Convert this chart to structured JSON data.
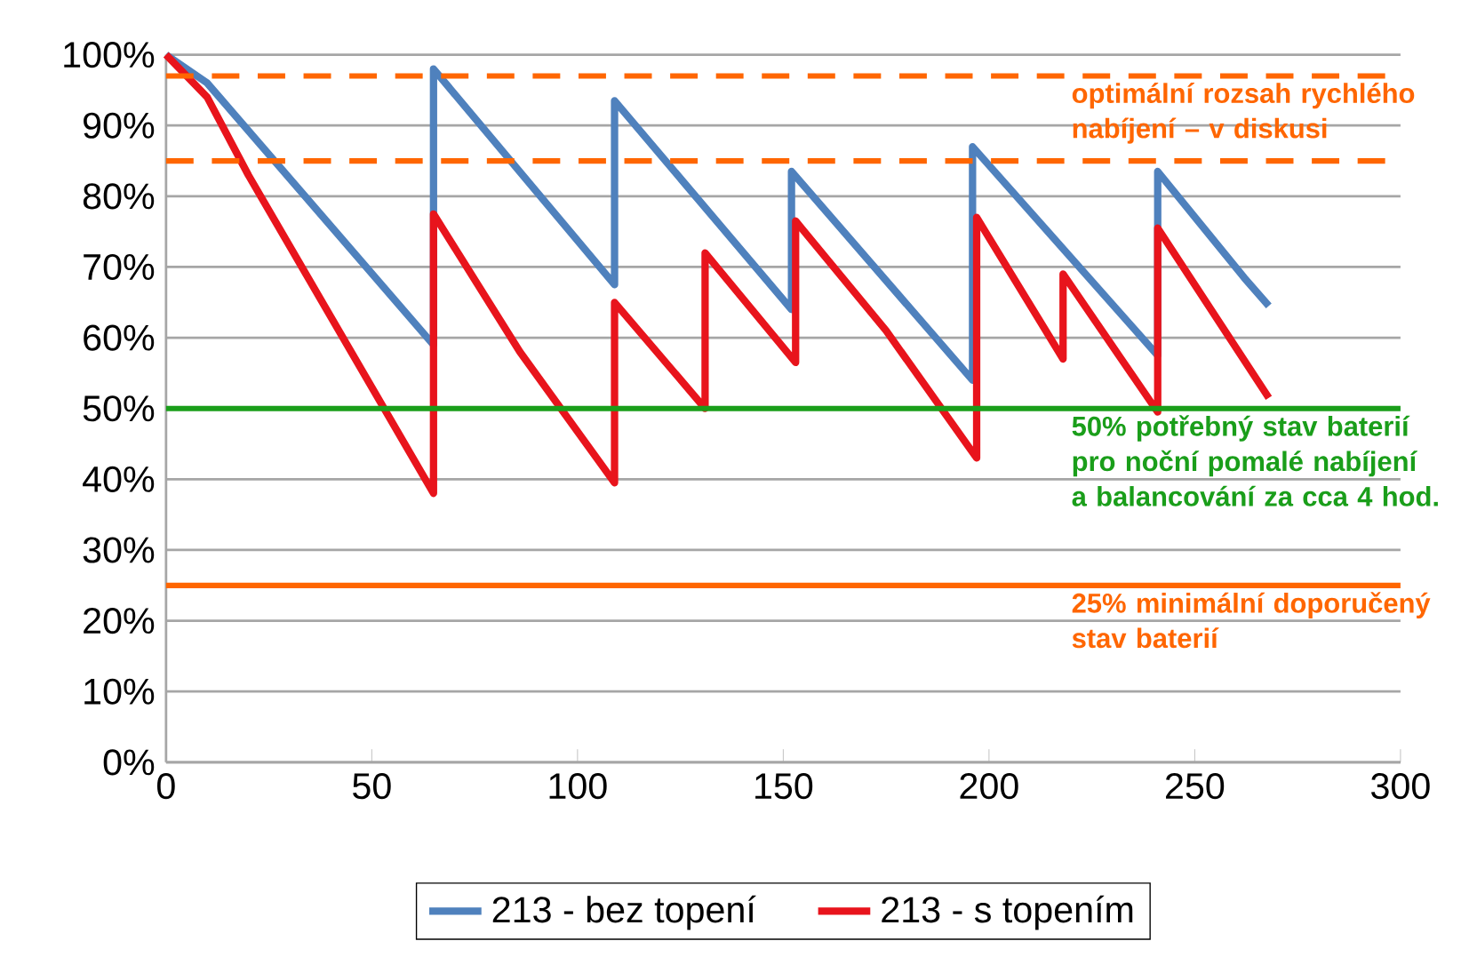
{
  "chart_data": {
    "type": "line",
    "xlim": [
      0,
      300
    ],
    "ylim": [
      0,
      100
    ],
    "xticks": [
      0,
      50,
      100,
      150,
      200,
      250,
      300
    ],
    "yticks": [
      {
        "value": 0,
        "label": "0%"
      },
      {
        "value": 10,
        "label": "10%"
      },
      {
        "value": 20,
        "label": "20%"
      },
      {
        "value": 30,
        "label": "30%"
      },
      {
        "value": 40,
        "label": "40%"
      },
      {
        "value": 50,
        "label": "50%"
      },
      {
        "value": 60,
        "label": "60%"
      },
      {
        "value": 70,
        "label": "70%"
      },
      {
        "value": 80,
        "label": "80%"
      },
      {
        "value": 90,
        "label": "90%"
      },
      {
        "value": 100,
        "label": "100%"
      }
    ],
    "grid": "y",
    "legend": "bottom",
    "marker": "none",
    "line_style": "solid",
    "series": [
      {
        "name": "213 - bez topení",
        "color": "#4f81bd",
        "x": [
          0,
          10,
          65,
          65,
          109,
          109,
          152,
          152,
          196,
          196,
          241,
          241,
          262,
          268
        ],
        "values": [
          100,
          96,
          59,
          98,
          67.5,
          93.5,
          64,
          83.5,
          54,
          87,
          57.5,
          83.5,
          68.5,
          64.5
        ]
      },
      {
        "name": "213 - s topením",
        "color": "#e8141c",
        "x": [
          0,
          10,
          20,
          65,
          65,
          86,
          109,
          109,
          131,
          131,
          153,
          153,
          175,
          197,
          197,
          218,
          218,
          241,
          241,
          268
        ],
        "values": [
          100,
          94,
          83,
          38,
          77.5,
          58,
          39.5,
          65,
          50,
          72,
          56.5,
          76.5,
          61,
          43,
          77,
          57,
          69,
          49.5,
          75.5,
          51.5
        ]
      }
    ],
    "ref_lines": [
      {
        "axis": "y",
        "value": 97,
        "label": "optimální rozsah rychlého nabíjení – v diskusi",
        "color": "#ff6600",
        "line_style": "dashed"
      },
      {
        "axis": "y",
        "value": 85,
        "color": "#ff6600",
        "line_style": "dashed"
      },
      {
        "axis": "y",
        "value": 50,
        "label": "50% potřebný stav baterií pro noční pomalé nabíjení a balancování za cca 4 hod.",
        "color": "#1a9e1a",
        "line_style": "solid"
      },
      {
        "axis": "y",
        "value": 25,
        "label": "25% minimální doporučený stav baterií",
        "color": "#ff6600",
        "line_style": "solid"
      }
    ]
  }
}
